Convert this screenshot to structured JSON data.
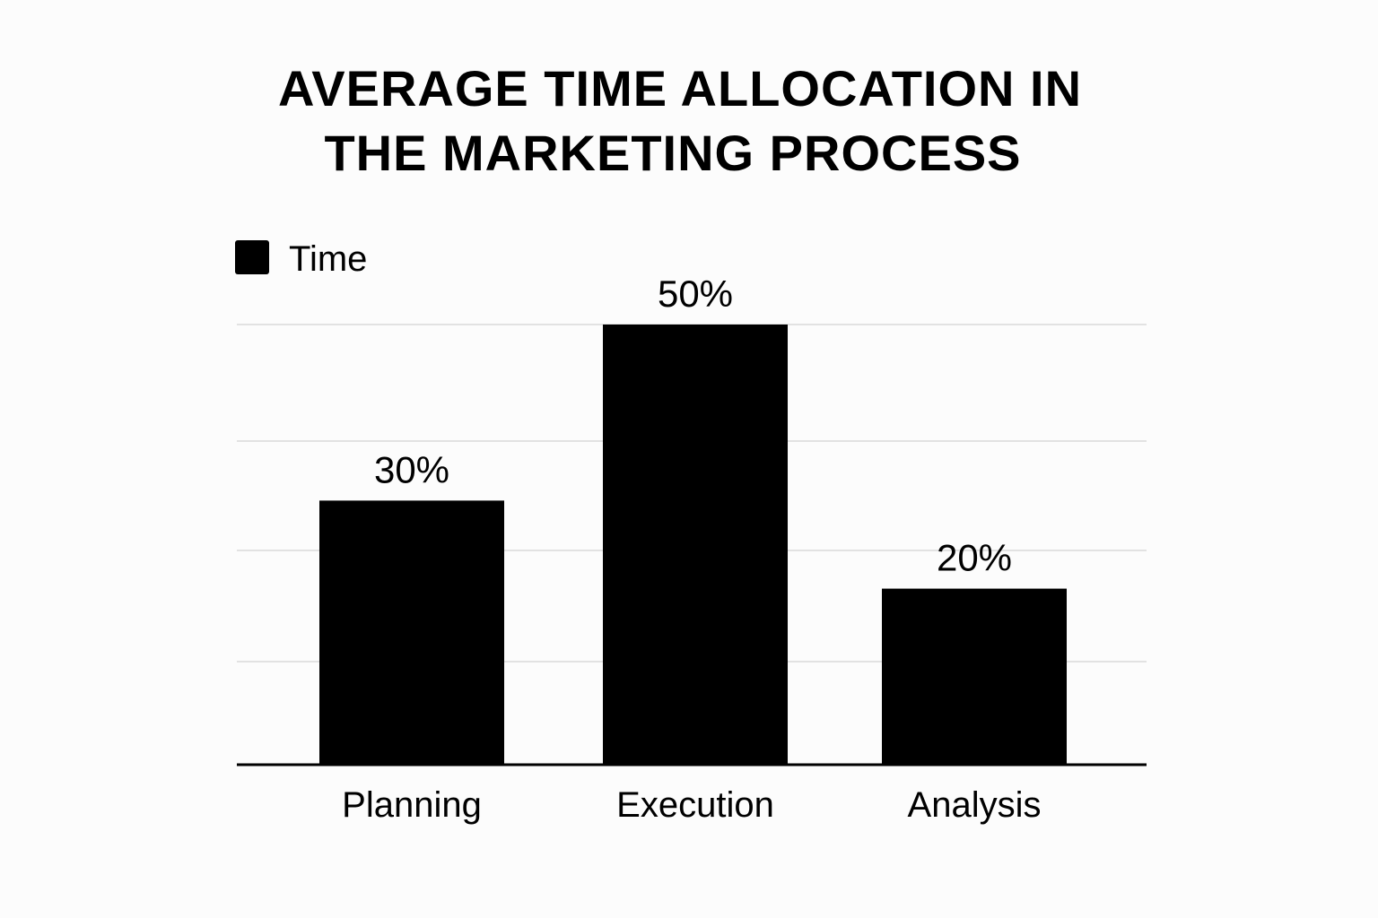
{
  "chart_data": {
    "type": "bar",
    "title_lines": [
      "AVERAGE TIME ALLOCATION IN",
      "THE MARKETING PROCESS"
    ],
    "categories": [
      "Planning",
      "Execution",
      "Analysis"
    ],
    "series": [
      {
        "name": "Time",
        "values": [
          30,
          50,
          20
        ]
      }
    ],
    "data_labels": [
      "30%",
      "50%",
      "20%"
    ],
    "ylim": [
      0,
      50
    ],
    "grid": true,
    "legend": "top-left",
    "colors": {
      "bar": "#000000",
      "grid": "#d9d9d9",
      "axis": "#000000",
      "background": "#fcfcfc"
    }
  }
}
